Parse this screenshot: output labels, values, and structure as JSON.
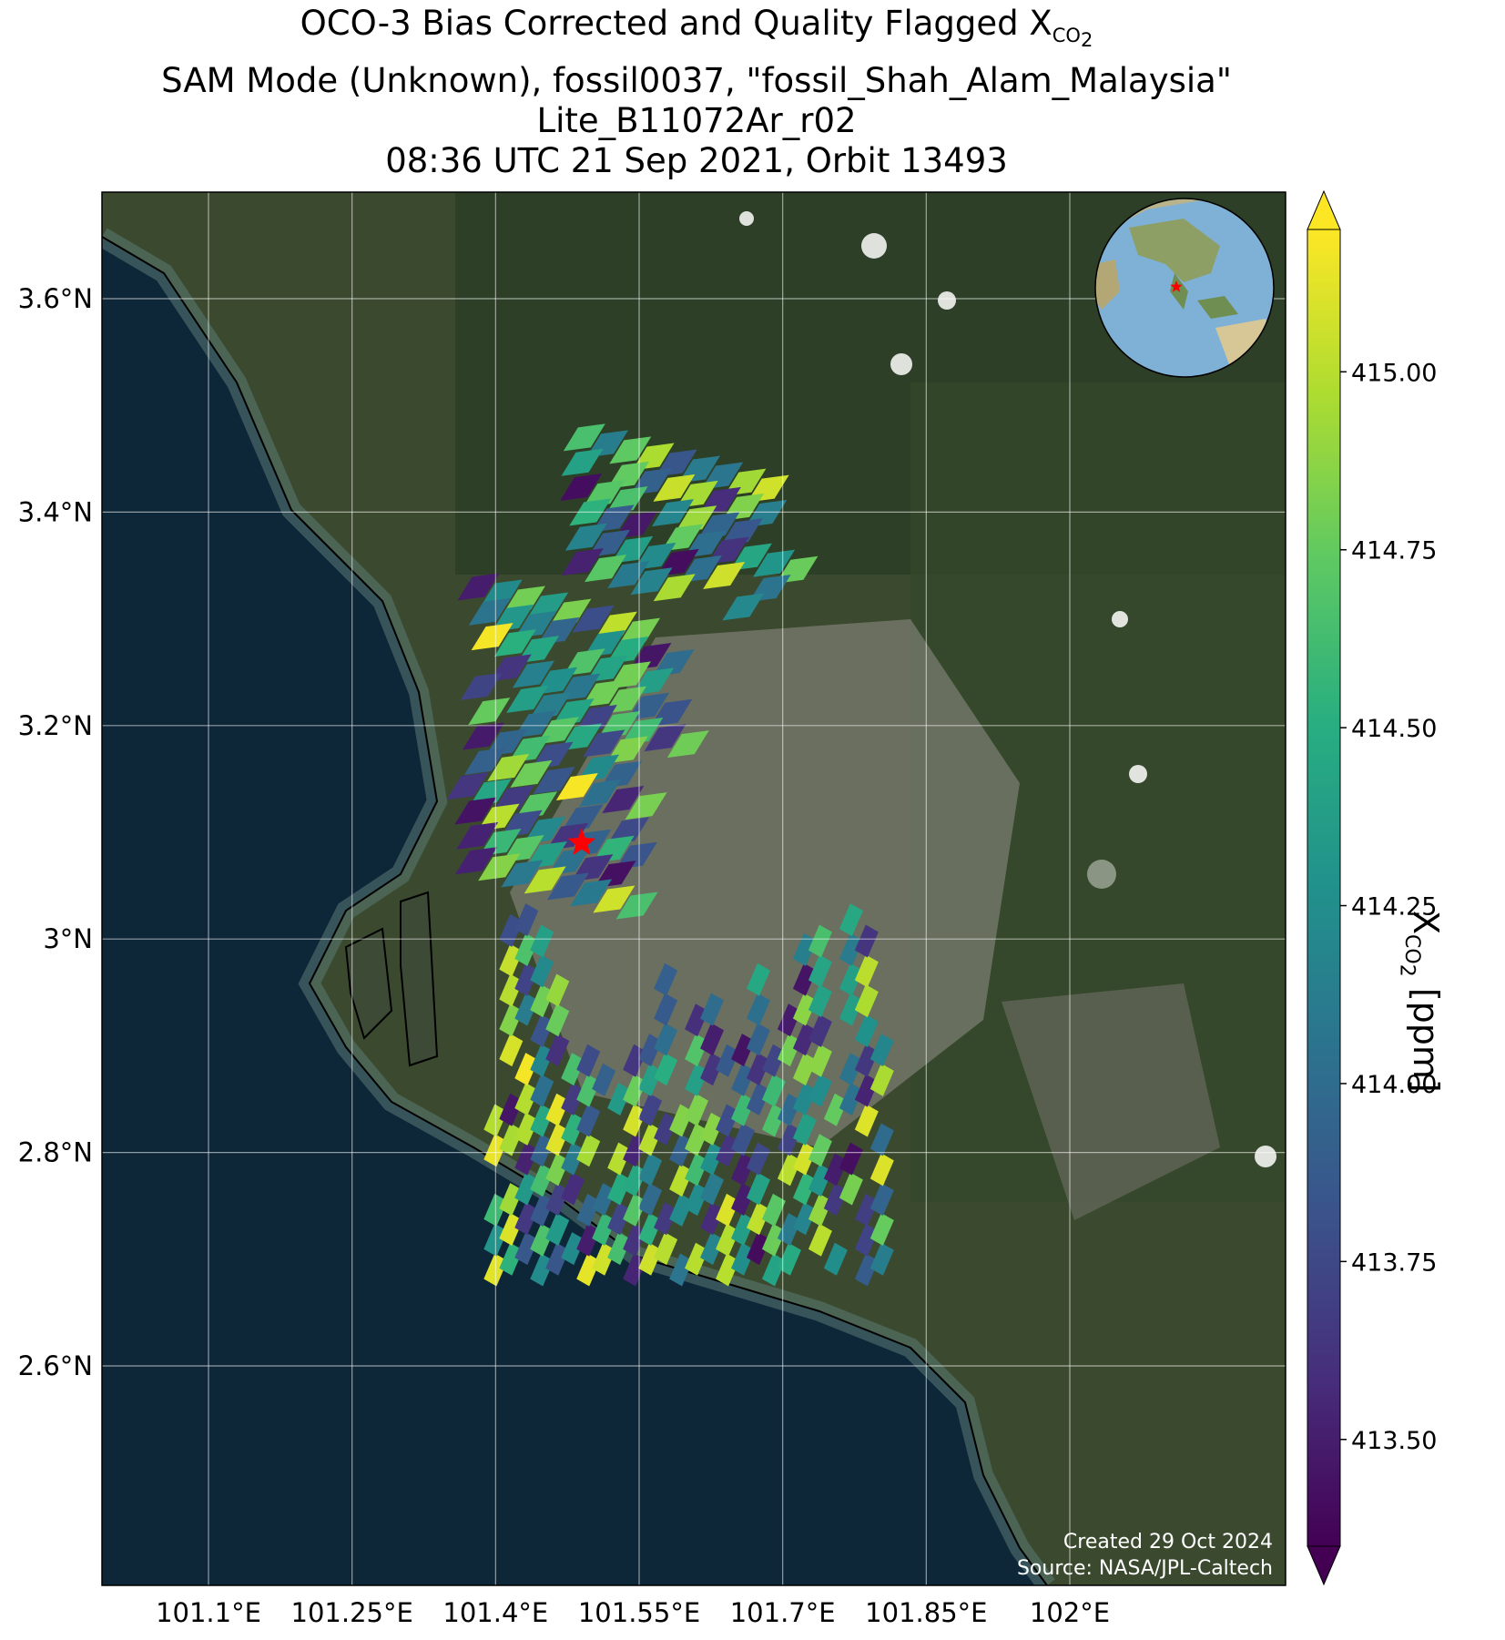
{
  "title": {
    "line1_prefix": "OCO-3 Bias Corrected and Quality Flagged X",
    "line1_subscript": "CO",
    "line1_subsub": "2",
    "line2": "SAM Mode (Unknown), fossil0037, \"fossil_Shah_Alam_Malaysia\"",
    "line3": "Lite_B11072Ar_r02",
    "line4": "08:36 UTC 21 Sep 2021, Orbit 13493"
  },
  "colorbar": {
    "label_prefix": "X",
    "label_sub": "CO",
    "label_subsub": "2",
    "label_suffix": " [ppm]",
    "ticks": [
      "415.00",
      "414.75",
      "414.50",
      "414.25",
      "414.00",
      "413.75",
      "413.50"
    ],
    "tick_values": [
      415.0,
      414.75,
      414.5,
      414.25,
      414.0,
      413.75,
      413.5
    ],
    "vmin": 413.35,
    "vmax": 415.2,
    "colormap": "viridis",
    "extend": "both"
  },
  "credits": {
    "created": "Created 29 Oct 2024",
    "source": "Source: NASA/JPL-Caltech"
  },
  "map": {
    "lat_labels": [
      "3.6°N",
      "3.4°N",
      "3.2°N",
      "3°N",
      "2.8°N",
      "2.6°N"
    ],
    "lon_labels": [
      "101.1°E",
      "101.25°E",
      "101.4°E",
      "101.55°E",
      "101.7°E",
      "101.85°E",
      "102°E"
    ],
    "lat_ticks": [
      3.6,
      3.4,
      3.2,
      3.0,
      2.8,
      2.6
    ],
    "lon_ticks": [
      101.1,
      101.25,
      101.4,
      101.55,
      101.7,
      101.85,
      102.0
    ],
    "lat_range": [
      2.42,
      3.7
    ],
    "lon_range": [
      101.05,
      101.9
    ],
    "target_marker": {
      "name": "fossil_Shah_Alam_Malaysia",
      "lon": 101.49,
      "lat": 3.09,
      "color": "#ff0000"
    },
    "inset_globe": {
      "marker_color": "#ff0000"
    },
    "colors": {
      "ocean": "#0d2638",
      "land": "#3b4a2e",
      "urban": "#7a7a72",
      "coastline": "#000000"
    }
  },
  "chart_data": {
    "type": "heatmap",
    "quantity": "XCO2",
    "unit": "ppm",
    "value_range": [
      413.35,
      415.2
    ],
    "soundings_north_cluster": {
      "lon_range": [
        101.38,
        101.62
      ],
      "lat_range": [
        3.05,
        3.47
      ],
      "value_range": [
        413.4,
        415.2
      ]
    },
    "soundings_south_cluster": {
      "lon_range": [
        101.4,
        101.82
      ],
      "lat_range": [
        2.66,
        3.0
      ],
      "value_range": [
        413.4,
        415.2
      ]
    }
  }
}
